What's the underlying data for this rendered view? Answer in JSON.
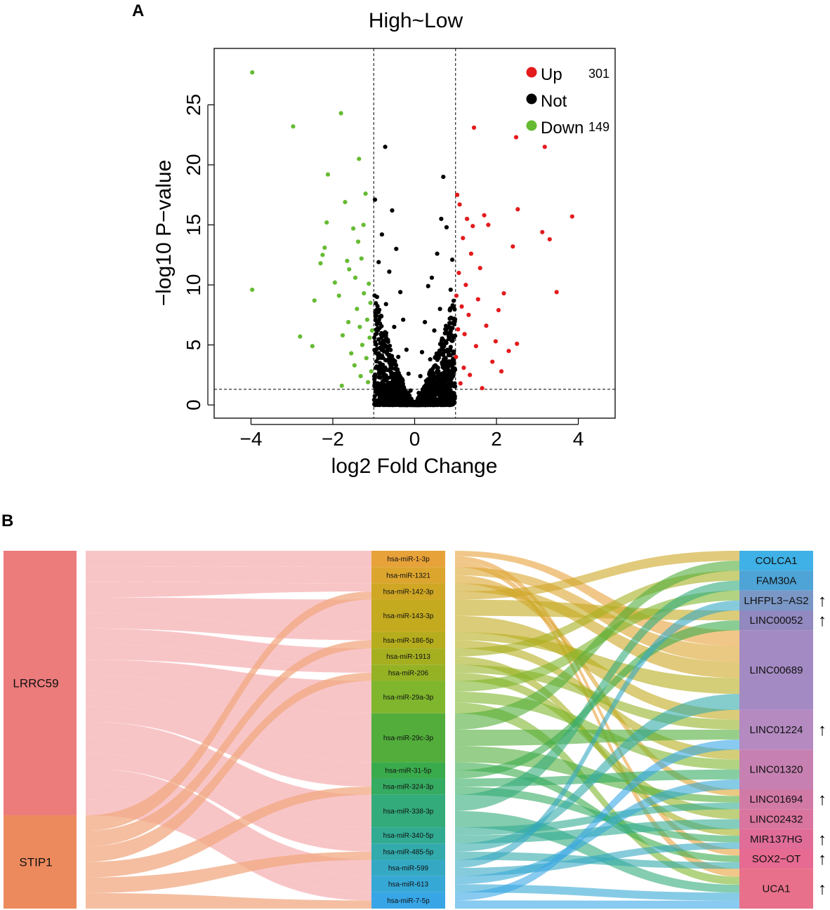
{
  "panels": {
    "a": "A",
    "b": "B"
  },
  "colors": {
    "up": "#e41a1c",
    "not": "#000000",
    "down": "#66bb33",
    "src_lrrc59": "#ec7b7b",
    "src_stip1": "#ec8a5e",
    "flow_lrrc59": "#f5b2b4",
    "flow_stip1": "#f2a882"
  },
  "chart_data": [
    {
      "type": "scatter",
      "title": "High~Low",
      "xlabel": "log2 Fold Change",
      "ylabel": "−log10 P−value",
      "xlim": [
        -4.9,
        4.9
      ],
      "ylim": [
        -1.1,
        29.7
      ],
      "xticks": [
        -4,
        -2,
        0,
        2,
        4
      ],
      "xtick_labels": [
        "−4",
        "−2",
        "0",
        "2",
        "4"
      ],
      "yticks": [
        0,
        5,
        10,
        15,
        20,
        25
      ],
      "ytick_labels": [
        "0",
        "5",
        "10",
        "15",
        "20",
        "25"
      ],
      "thresholds": {
        "log2fc": [
          -1,
          1
        ],
        "neg_log10_p": 1.3
      },
      "legend": [
        {
          "label": "Up",
          "count": "301",
          "color": "#e41a1c"
        },
        {
          "label": "Not",
          "count": "",
          "color": "#000000"
        },
        {
          "label": "Down",
          "count": "149",
          "color": "#66bb33"
        }
      ],
      "series": [
        {
          "name": "Down",
          "color": "#66bb33",
          "points": [
            [
              -3.97,
              27.7
            ],
            [
              -3.97,
              9.6
            ],
            [
              -2.97,
              23.2
            ],
            [
              -2.8,
              5.7
            ],
            [
              -2.5,
              4.9
            ],
            [
              -2.45,
              8.7
            ],
            [
              -2.3,
              11.8
            ],
            [
              -2.25,
              12.5
            ],
            [
              -2.2,
              13.1
            ],
            [
              -2.15,
              15.2
            ],
            [
              -2.12,
              19.2
            ],
            [
              -1.95,
              10.2
            ],
            [
              -1.85,
              9.1
            ],
            [
              -1.8,
              24.3
            ],
            [
              -1.78,
              1.6
            ],
            [
              -1.76,
              5.8
            ],
            [
              -1.7,
              16.9
            ],
            [
              -1.65,
              12.0
            ],
            [
              -1.62,
              6.9
            ],
            [
              -1.6,
              11.3
            ],
            [
              -1.55,
              4.3
            ],
            [
              -1.5,
              14.7
            ],
            [
              -1.47,
              3.3
            ],
            [
              -1.45,
              10.6
            ],
            [
              -1.41,
              8.0
            ],
            [
              -1.38,
              13.6
            ],
            [
              -1.36,
              20.5
            ],
            [
              -1.34,
              6.5
            ],
            [
              -1.32,
              2.4
            ],
            [
              -1.3,
              12.2
            ],
            [
              -1.28,
              5.0
            ],
            [
              -1.25,
              15.0
            ],
            [
              -1.24,
              9.3
            ],
            [
              -1.2,
              17.6
            ],
            [
              -1.18,
              3.9
            ],
            [
              -1.16,
              7.1
            ],
            [
              -1.14,
              1.9
            ],
            [
              -1.12,
              10.1
            ],
            [
              -1.1,
              5.6
            ],
            [
              -1.08,
              8.5
            ],
            [
              -1.06,
              2.8
            ],
            [
              -1.04,
              6.2
            ]
          ]
        },
        {
          "name": "Up",
          "color": "#e41a1c",
          "points": [
            [
              3.85,
              15.7
            ],
            [
              3.47,
              9.4
            ],
            [
              3.3,
              13.8
            ],
            [
              3.18,
              21.5
            ],
            [
              3.12,
              14.4
            ],
            [
              2.52,
              16.3
            ],
            [
              2.5,
              5.1
            ],
            [
              2.48,
              22.3
            ],
            [
              2.4,
              13.2
            ],
            [
              2.3,
              4.5
            ],
            [
              2.18,
              9.3
            ],
            [
              2.12,
              2.8
            ],
            [
              2.05,
              7.9
            ],
            [
              1.98,
              5.3
            ],
            [
              1.9,
              3.6
            ],
            [
              1.8,
              15.0
            ],
            [
              1.75,
              6.6
            ],
            [
              1.7,
              15.8
            ],
            [
              1.65,
              1.4
            ],
            [
              1.6,
              11.4
            ],
            [
              1.55,
              8.8
            ],
            [
              1.5,
              4.9
            ],
            [
              1.45,
              23.1
            ],
            [
              1.42,
              14.9
            ],
            [
              1.38,
              12.6
            ],
            [
              1.35,
              2.5
            ],
            [
              1.32,
              7.5
            ],
            [
              1.28,
              15.5
            ],
            [
              1.25,
              10.0
            ],
            [
              1.22,
              5.9
            ],
            [
              1.2,
              3.1
            ],
            [
              1.18,
              13.9
            ],
            [
              1.15,
              8.2
            ],
            [
              1.12,
              1.8
            ],
            [
              1.1,
              16.7
            ],
            [
              1.08,
              11.0
            ],
            [
              1.06,
              6.3
            ],
            [
              1.04,
              17.5
            ],
            [
              1.02,
              9.1
            ],
            [
              1.01,
              4.0
            ]
          ]
        },
        {
          "name": "Not",
          "color": "#000000",
          "points": [
            [
              -0.72,
              21.5
            ],
            [
              0.7,
              19.0
            ],
            [
              -0.97,
              17.1
            ],
            [
              -0.55,
              16.2
            ],
            [
              0.65,
              15.5
            ],
            [
              -0.8,
              14.2
            ],
            [
              0.78,
              14.8
            ],
            [
              -0.45,
              13.0
            ],
            [
              0.55,
              12.6
            ],
            [
              -0.88,
              11.9
            ],
            [
              0.92,
              12.1
            ],
            [
              -0.62,
              11.1
            ],
            [
              0.42,
              10.6
            ],
            [
              -0.35,
              9.4
            ],
            [
              0.33,
              9.9
            ],
            [
              -0.92,
              9.0
            ],
            [
              0.88,
              9.6
            ],
            [
              -0.7,
              8.4
            ],
            [
              0.62,
              8.0
            ],
            [
              -0.28,
              7.1
            ],
            [
              0.25,
              6.9
            ],
            [
              -0.5,
              6.5
            ],
            [
              0.48,
              6.2
            ],
            [
              -0.95,
              5.9
            ],
            [
              0.95,
              5.6
            ],
            [
              -0.75,
              5.1
            ],
            [
              0.72,
              4.9
            ],
            [
              -0.2,
              4.6
            ],
            [
              0.18,
              4.4
            ],
            [
              -0.4,
              4.0
            ],
            [
              0.38,
              3.8
            ],
            [
              -0.85,
              3.5
            ],
            [
              0.82,
              3.3
            ],
            [
              -0.6,
              3.0
            ],
            [
              0.58,
              2.8
            ],
            [
              -0.15,
              2.6
            ],
            [
              0.14,
              2.4
            ],
            [
              -0.3,
              2.1
            ],
            [
              0.28,
              2.0
            ],
            [
              -0.9,
              1.8
            ],
            [
              0.9,
              1.7
            ],
            [
              -0.68,
              1.5
            ],
            [
              0.66,
              1.3
            ],
            [
              -0.1,
              1.2
            ],
            [
              0.1,
              1.0
            ],
            [
              -0.22,
              0.8
            ],
            [
              0.2,
              0.7
            ],
            [
              -0.45,
              0.6
            ],
            [
              0.45,
              0.5
            ],
            [
              -0.05,
              0.3
            ],
            [
              0.05,
              0.2
            ],
            [
              0.0,
              0.1
            ]
          ]
        }
      ]
    },
    {
      "type": "sankey",
      "sources": [
        "LRRC59",
        "STIP1"
      ],
      "mirnas": [
        "hsa-miR-1-3p",
        "hsa-miR-1321",
        "hsa-miR-142-3p",
        "hsa-miR-143-3p",
        "hsa-miR-186-5p",
        "hsa-miR-1913",
        "hsa-miR-206",
        "hsa-miR-29a-3p",
        "hsa-miR-29c-3p",
        "hsa-miR-31-5p",
        "hsa-miR-324-3p",
        "hsa-miR-338-3p",
        "hsa-miR-340-5p",
        "hsa-miR-485-5p",
        "hsa-miR-599",
        "hsa-miR-613",
        "hsa-miR-7-5p"
      ],
      "mirna_colors": [
        "#e8a23a",
        "#dca52e",
        "#cfa725",
        "#c3aa1f",
        "#b5ad1d",
        "#a6af20",
        "#95b225",
        "#7fb62d",
        "#52ad3b",
        "#3aab4c",
        "#36ab62",
        "#33ab7b",
        "#32ab93",
        "#33aaab",
        "#35a9c3",
        "#36a8d6",
        "#38a6e6"
      ],
      "mirna_weights": [
        1,
        1,
        1,
        2,
        1,
        1,
        1,
        2,
        3,
        1,
        1,
        2,
        1,
        1,
        1,
        1,
        1
      ],
      "lncrnas": [
        "COLCA1",
        "FAM30A",
        "LHFPL3−AS2",
        "LINC00052",
        "LINC00689",
        "LINC01224",
        "LINC01320",
        "LINC01694",
        "LINC02432",
        "MIR137HG",
        "SOX2−OT",
        "UCA1"
      ],
      "lncrna_colors": [
        "#3fb1e6",
        "#4ea4d7",
        "#7b97c6",
        "#9189bf",
        "#a48ac3",
        "#b48ac1",
        "#c681b2",
        "#d27aa6",
        "#d9759f",
        "#e06d98",
        "#e66a91",
        "#e8708a"
      ],
      "lncrna_weights": [
        1,
        1,
        1,
        1,
        4,
        2,
        2,
        1,
        1,
        1,
        1,
        2
      ],
      "lncrna_up": [
        false,
        false,
        true,
        true,
        false,
        true,
        false,
        true,
        false,
        true,
        true,
        true
      ],
      "up_marker": "↑",
      "gene_mirna": [
        [
          0,
          0
        ],
        [
          0,
          1
        ],
        [
          0,
          2
        ],
        [
          0,
          3
        ],
        [
          0,
          4
        ],
        [
          0,
          5
        ],
        [
          0,
          6
        ],
        [
          0,
          7
        ],
        [
          0,
          8
        ],
        [
          0,
          9
        ],
        [
          0,
          10
        ],
        [
          0,
          11
        ],
        [
          0,
          12
        ],
        [
          0,
          13
        ],
        [
          0,
          14
        ],
        [
          0,
          15
        ],
        [
          0,
          16
        ],
        [
          1,
          2
        ],
        [
          1,
          4
        ],
        [
          1,
          6
        ],
        [
          1,
          10
        ],
        [
          1,
          13
        ],
        [
          1,
          16
        ]
      ],
      "mirna_lncrna": [
        [
          0,
          4
        ],
        [
          0,
          10
        ],
        [
          0,
          11
        ],
        [
          1,
          4
        ],
        [
          1,
          7
        ],
        [
          2,
          4
        ],
        [
          2,
          0
        ],
        [
          3,
          3
        ],
        [
          3,
          5
        ],
        [
          4,
          4
        ],
        [
          4,
          6
        ],
        [
          5,
          1
        ],
        [
          5,
          9
        ],
        [
          6,
          5
        ],
        [
          6,
          8
        ],
        [
          7,
          2
        ],
        [
          7,
          6
        ],
        [
          7,
          11
        ],
        [
          8,
          0
        ],
        [
          8,
          5
        ],
        [
          8,
          7
        ],
        [
          9,
          10
        ],
        [
          9,
          3
        ],
        [
          10,
          6
        ],
        [
          10,
          9
        ],
        [
          11,
          1
        ],
        [
          11,
          11
        ],
        [
          12,
          7
        ],
        [
          12,
          8
        ],
        [
          13,
          4
        ],
        [
          13,
          10
        ],
        [
          14,
          2
        ],
        [
          14,
          9
        ],
        [
          15,
          6
        ],
        [
          15,
          11
        ],
        [
          16,
          5
        ],
        [
          16,
          11
        ]
      ]
    }
  ]
}
